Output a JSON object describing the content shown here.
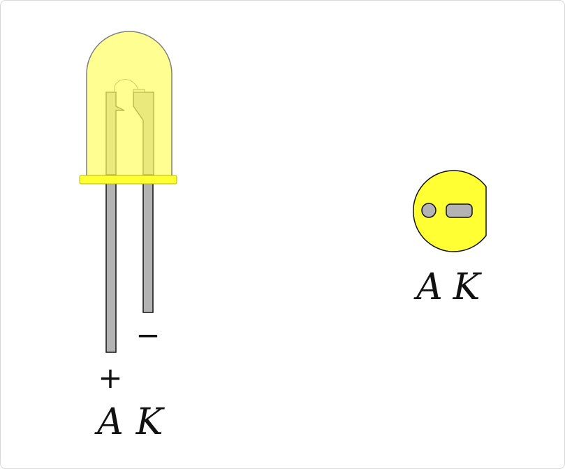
{
  "diagram": {
    "side_view": {
      "plus_sign": "+",
      "minus_sign": "−",
      "anode_label": "A",
      "cathode_label": "K"
    },
    "top_view": {
      "anode_label": "A",
      "cathode_label": "K"
    },
    "colors": {
      "body_fill": "#ffff66",
      "body_stroke": "#7f7f7f",
      "lead_fill": "#b3b3b3",
      "lead_stroke": "#111111",
      "flange_fill": "#ffff33",
      "top_view_fill": "#ffff33",
      "text": "#111111"
    }
  }
}
